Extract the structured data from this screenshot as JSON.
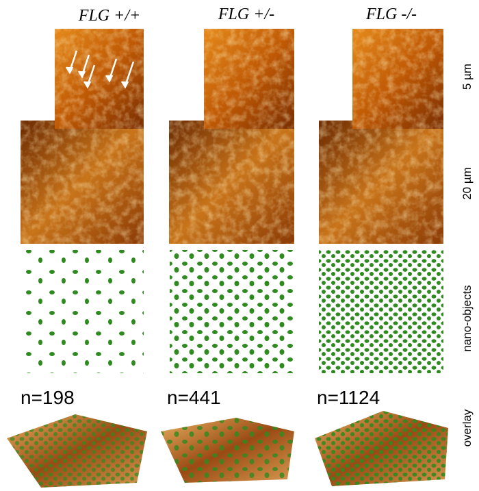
{
  "columns": [
    {
      "title": "FLG +/+",
      "count": "n=198"
    },
    {
      "title": "FLG +/-",
      "count": "n=441"
    },
    {
      "title": "FLG -/-",
      "count": "n=1124"
    }
  ],
  "rows": {
    "small_scale": "5 µm",
    "large_scale": "20 µm",
    "objects": "nano-objects",
    "overlay": "overlay"
  }
}
